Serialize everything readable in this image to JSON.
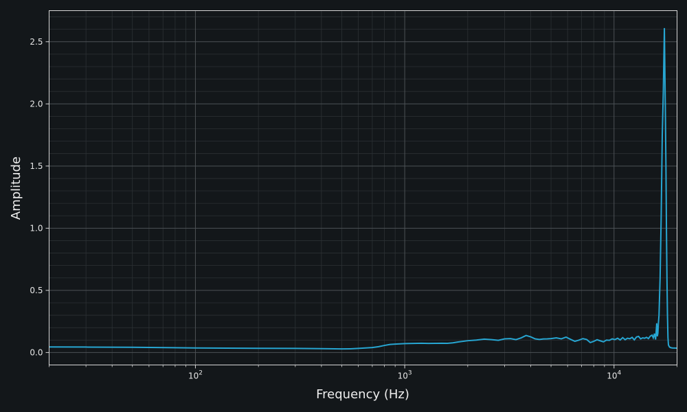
{
  "colors": {
    "background": "#13171a",
    "plot_background": "#13171a",
    "grid_major": "#4d5256",
    "grid_minor": "#2c3134",
    "axis": "#d8d8d8",
    "series": "#27a6d2"
  },
  "chart_data": {
    "type": "line",
    "title": "",
    "xlabel": "Frequency (Hz)",
    "ylabel": "Amplitude",
    "xscale": "log",
    "xlim": [
      20,
      20000
    ],
    "ylim": [
      -0.1,
      2.75
    ],
    "grid": true,
    "legend": "none",
    "x_ticks": [
      {
        "value": 100,
        "base": "10",
        "exp": "2"
      },
      {
        "value": 1000,
        "base": "10",
        "exp": "3"
      },
      {
        "value": 10000,
        "base": "10",
        "exp": "4"
      }
    ],
    "y_ticks": [
      {
        "value": 0.0,
        "label": "0.0"
      },
      {
        "value": 0.5,
        "label": "0.5"
      },
      {
        "value": 1.0,
        "label": "1.0"
      },
      {
        "value": 1.5,
        "label": "1.5"
      },
      {
        "value": 2.0,
        "label": "2.0"
      },
      {
        "value": 2.5,
        "label": "2.5"
      }
    ],
    "series": [
      {
        "x": [
          20,
          30,
          50,
          100,
          200,
          300,
          400,
          500,
          550,
          600,
          700,
          750,
          800,
          850,
          900,
          1000,
          1100,
          1200,
          1300,
          1400,
          1500,
          1600,
          1700,
          1800,
          2000,
          2200,
          2400,
          2600,
          2800,
          3000,
          3200,
          3400,
          3600,
          3800,
          4000,
          4200,
          4400,
          4600,
          4800,
          5000,
          5300,
          5600,
          5900,
          6200,
          6500,
          6800,
          7100,
          7400,
          7700,
          8000,
          8300,
          8600,
          8900,
          9200,
          9500,
          9800,
          10100,
          10400,
          10700,
          11000,
          11300,
          11600,
          11900,
          12200,
          12500,
          12800,
          13100,
          13400,
          13700,
          14000,
          14300,
          14600,
          14900,
          15200,
          15400,
          15600,
          15800,
          16000,
          16100,
          16200,
          16300,
          16400,
          16600,
          16800,
          17000,
          17200,
          17400,
          17600,
          17700,
          17800,
          17900,
          18000,
          18100,
          18200,
          18400,
          18600,
          18800,
          19000,
          20000
        ],
        "y": [
          0.045,
          0.044,
          0.042,
          0.037,
          0.034,
          0.033,
          0.031,
          0.029,
          0.03,
          0.033,
          0.04,
          0.047,
          0.057,
          0.065,
          0.068,
          0.072,
          0.073,
          0.075,
          0.073,
          0.074,
          0.075,
          0.074,
          0.078,
          0.085,
          0.095,
          0.1,
          0.108,
          0.104,
          0.098,
          0.11,
          0.112,
          0.104,
          0.118,
          0.137,
          0.126,
          0.11,
          0.105,
          0.109,
          0.11,
          0.112,
          0.118,
          0.11,
          0.124,
          0.106,
          0.09,
          0.1,
          0.112,
          0.105,
          0.08,
          0.09,
          0.103,
          0.094,
          0.086,
          0.1,
          0.098,
          0.11,
          0.104,
          0.115,
          0.101,
          0.12,
          0.103,
          0.115,
          0.111,
          0.122,
          0.102,
          0.125,
          0.13,
          0.11,
          0.118,
          0.115,
          0.122,
          0.112,
          0.132,
          0.14,
          0.118,
          0.152,
          0.105,
          0.235,
          0.13,
          0.155,
          0.24,
          0.3,
          0.6,
          1.1,
          1.75,
          2.1,
          2.61,
          1.9,
          1.5,
          1.0,
          0.6,
          0.3,
          0.12,
          0.06,
          0.045,
          0.04,
          0.038,
          0.037,
          0.035
        ]
      }
    ]
  }
}
